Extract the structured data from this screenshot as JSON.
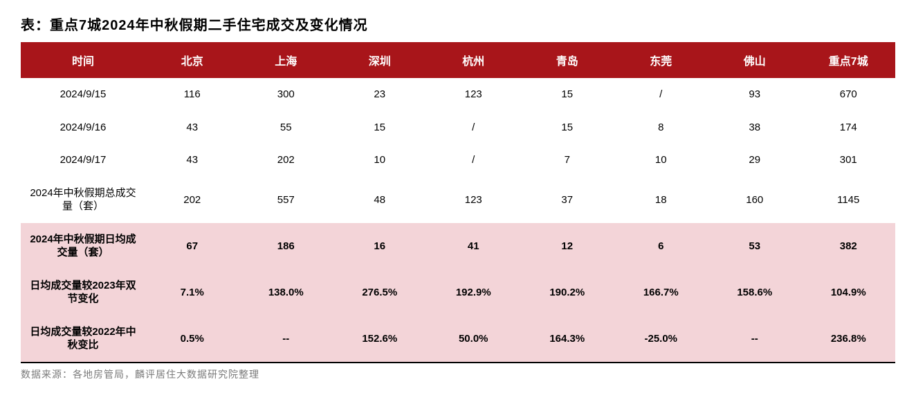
{
  "title": "表：重点7城2024年中秋假期二手住宅成交及变化情况",
  "source": "数据来源：各地房管局，麟评居住大数据研究院整理",
  "table": {
    "header_bg": "#a8151a",
    "header_color": "#ffffff",
    "highlight_bg": "#f3d4d8",
    "normal_bg": "#ffffff",
    "columns": [
      "时间",
      "北京",
      "上海",
      "深圳",
      "杭州",
      "青岛",
      "东莞",
      "佛山",
      "重点7城"
    ],
    "rows": [
      {
        "style": "normal",
        "label": "2024/9/15",
        "cells": [
          "116",
          "300",
          "23",
          "123",
          "15",
          "/",
          "93",
          "670"
        ]
      },
      {
        "style": "normal",
        "label": "2024/9/16",
        "cells": [
          "43",
          "55",
          "15",
          "/",
          "15",
          "8",
          "38",
          "174"
        ]
      },
      {
        "style": "normal",
        "label": "2024/9/17",
        "cells": [
          "43",
          "202",
          "10",
          "/",
          "7",
          "10",
          "29",
          "301"
        ]
      },
      {
        "style": "normal",
        "label": "2024年中秋假期总成交量（套）",
        "cells": [
          "202",
          "557",
          "48",
          "123",
          "37",
          "18",
          "160",
          "1145"
        ]
      },
      {
        "style": "highlight",
        "label": "2024年中秋假期日均成交量（套）",
        "cells": [
          "67",
          "186",
          "16",
          "41",
          "12",
          "6",
          "53",
          "382"
        ]
      },
      {
        "style": "highlight",
        "label": "日均成交量较2023年双节变化",
        "cells": [
          "7.1%",
          "138.0%",
          "276.5%",
          "192.9%",
          "190.2%",
          "166.7%",
          "158.6%",
          "104.9%"
        ]
      },
      {
        "style": "highlight-last",
        "label": "日均成交量较2022年中秋变比",
        "cells": [
          "0.5%",
          "--",
          "152.6%",
          "50.0%",
          "164.3%",
          "-25.0%",
          "--",
          "236.8%"
        ]
      }
    ]
  }
}
